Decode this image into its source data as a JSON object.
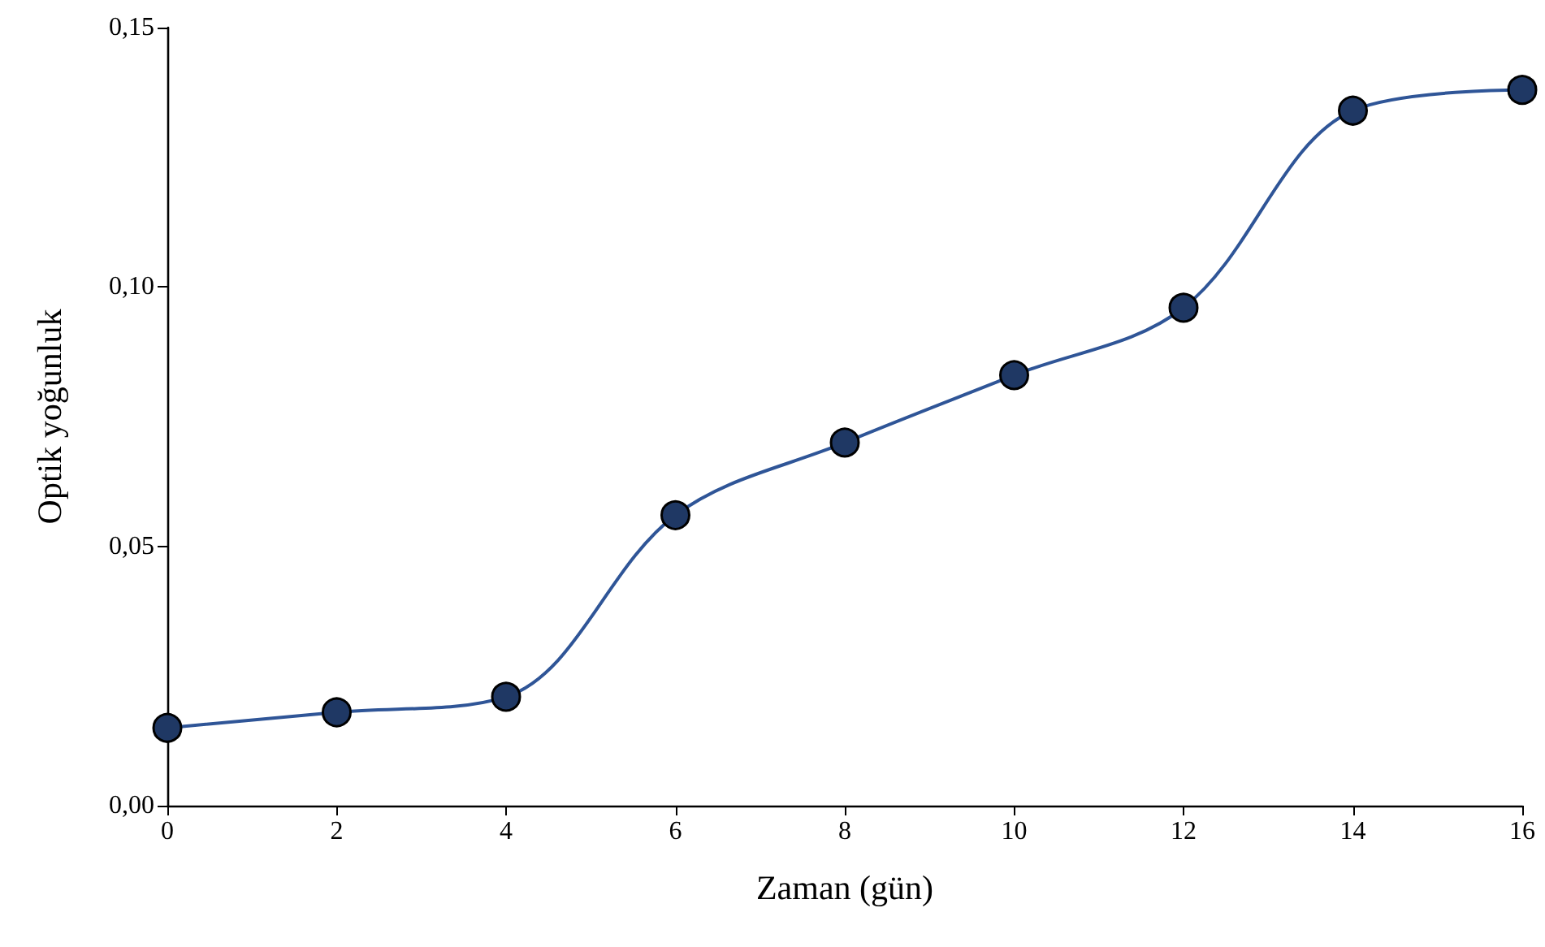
{
  "chart_data": {
    "type": "line",
    "xlabel": "Zaman (gün)",
    "ylabel": "Optik yoğunluk",
    "x": [
      0,
      2,
      4,
      6,
      8,
      10,
      12,
      14,
      16
    ],
    "series": [
      {
        "color": "#2f5597",
        "values": [
          0.015,
          0.018,
          0.021,
          0.056,
          0.07,
          0.083,
          0.096,
          0.134,
          0.138
        ]
      }
    ],
    "xlim": [
      0,
      16
    ],
    "xticks": [
      0,
      2,
      4,
      6,
      8,
      10,
      12,
      14,
      16
    ],
    "ylim": [
      0,
      0.15
    ],
    "yticks": [
      {
        "value": 0,
        "label": "0,00"
      },
      {
        "value": 0.05,
        "label": "0,05"
      },
      {
        "value": 0.1,
        "label": "0,10"
      },
      {
        "value": 0.15,
        "label": "0,15"
      }
    ],
    "grid": false,
    "legend": false,
    "marker": "circle",
    "line_style": "solid"
  }
}
